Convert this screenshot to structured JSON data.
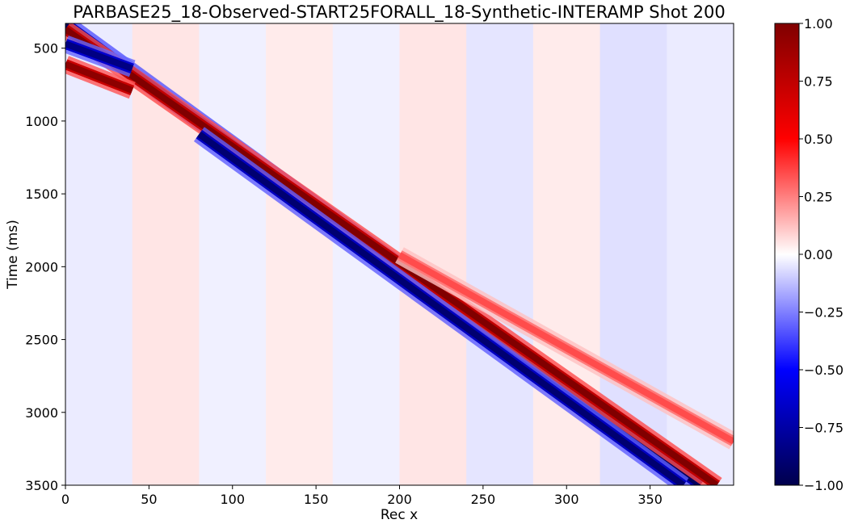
{
  "chart_data": {
    "type": "heatmap",
    "title": "PARBASE25_18-Observed-START25FORALL_18-Synthetic-INTERAMP Shot 200",
    "xlabel": "Rec x",
    "ylabel": "Time (ms)",
    "xlim": [
      0,
      400
    ],
    "ylim": [
      3500,
      330
    ],
    "y_inverted": true,
    "xticks": [
      0,
      50,
      100,
      150,
      200,
      250,
      300,
      350
    ],
    "yticks": [
      500,
      1000,
      1500,
      2000,
      2500,
      3000,
      3500
    ],
    "colormap": "seismic",
    "colormap_stops": [
      "#00004c",
      "#0000ff",
      "#ffffff",
      "#ff0000",
      "#800000"
    ],
    "colorbar": {
      "range": [
        -1.0,
        1.0
      ],
      "ticks": [
        "1.00",
        "0.75",
        "0.50",
        "0.25",
        "0.00",
        "−0.25",
        "−0.50",
        "−0.75",
        "−1.00"
      ],
      "tick_values": [
        1.0,
        0.75,
        0.5,
        0.25,
        0.0,
        -0.25,
        -0.5,
        -0.75,
        -1.0
      ]
    },
    "block_width_x": 40,
    "events": [
      {
        "name": "main-blue-lead",
        "x0": 0,
        "t0": 330,
        "x1": 380,
        "t1": 3500,
        "value": -0.95
      },
      {
        "name": "main-red",
        "x0": 0,
        "t0": 370,
        "x1": 390,
        "t1": 3500,
        "value": 1.0
      },
      {
        "name": "main-blue-trail",
        "x0": 80,
        "t0": 1090,
        "x1": 370,
        "t1": 3500,
        "value": -0.9
      },
      {
        "name": "secondary-pink",
        "x0": 200,
        "t0": 1920,
        "x1": 400,
        "t1": 3200,
        "value": 0.35
      },
      {
        "name": "early-red-curve",
        "x0": 0,
        "t0": 610,
        "x1": 40,
        "t1": 790,
        "value": 0.95
      },
      {
        "name": "early-blue-curve",
        "x0": 0,
        "t0": 470,
        "x1": 40,
        "t1": 640,
        "value": -0.85
      }
    ],
    "background_levels": [
      {
        "x": [
          0,
          40
        ],
        "value": -0.04
      },
      {
        "x": [
          40,
          80
        ],
        "value": 0.05
      },
      {
        "x": [
          80,
          120
        ],
        "value": -0.03
      },
      {
        "x": [
          120,
          160
        ],
        "value": 0.04
      },
      {
        "x": [
          160,
          200
        ],
        "value": -0.03
      },
      {
        "x": [
          200,
          240
        ],
        "value": 0.05
      },
      {
        "x": [
          240,
          280
        ],
        "value": -0.05
      },
      {
        "x": [
          280,
          320
        ],
        "value": 0.04
      },
      {
        "x": [
          320,
          360
        ],
        "value": -0.06
      },
      {
        "x": [
          360,
          400
        ],
        "value": -0.04
      }
    ]
  }
}
